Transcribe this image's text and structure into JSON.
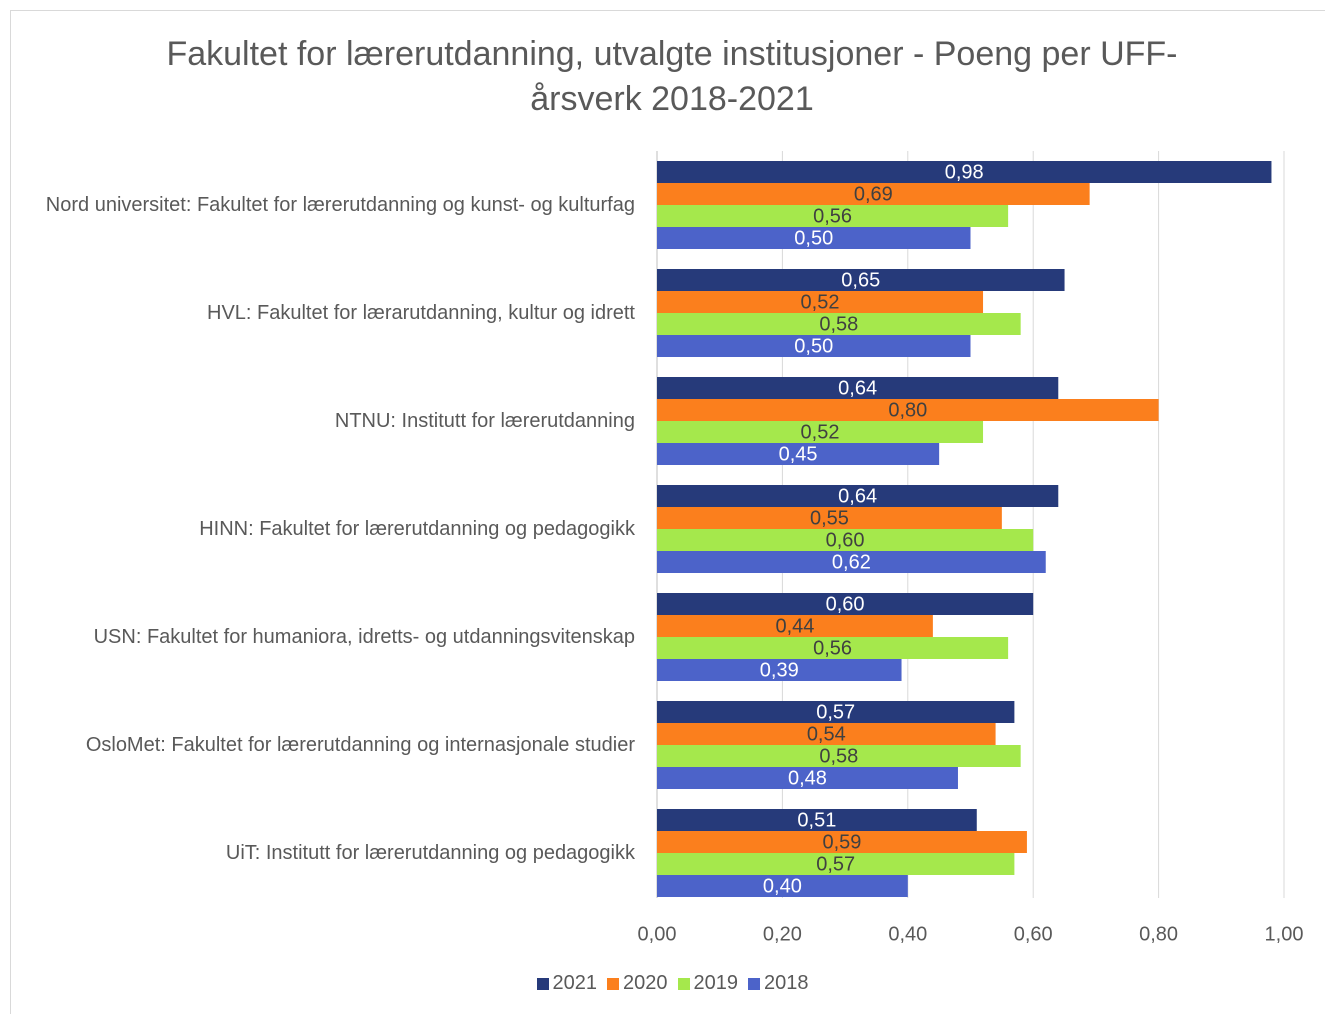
{
  "chart_data": {
    "type": "barh",
    "title": "Fakultet for lærerutdanning, utvalgte institusjoner - Poeng per UFF-årsverk 2018-2021",
    "categories": [
      "Nord universitet: Fakultet for lærerutdanning og kunst- og kulturfag",
      "HVL: Fakultet for lærarutdanning, kultur og idrett",
      "NTNU: Institutt for lærerutdanning",
      "HINN: Fakultet for lærerutdanning og pedagogikk",
      "USN: Fakultet for humaniora, idretts- og utdanningsvitenskap",
      "OsloMet: Fakultet for lærerutdanning og internasjonale studier",
      "UiT: Institutt for lærerutdanning og pedagogikk"
    ],
    "series": [
      {
        "name": "2021",
        "color": "#263a7a",
        "values": [
          0.98,
          0.65,
          0.64,
          0.64,
          0.6,
          0.57,
          0.51
        ],
        "value_labels": [
          "0,98",
          "0,65",
          "0,64",
          "0,64",
          "0,60",
          "0,57",
          "0,51"
        ]
      },
      {
        "name": "2020",
        "color": "#fb7f1d",
        "values": [
          0.69,
          0.52,
          0.8,
          0.55,
          0.44,
          0.54,
          0.59
        ],
        "value_labels": [
          "0,69",
          "0,52",
          "0,80",
          "0,55",
          "0,44",
          "0,54",
          "0,59"
        ]
      },
      {
        "name": "2019",
        "color": "#a5e84c",
        "values": [
          0.56,
          0.58,
          0.52,
          0.6,
          0.56,
          0.58,
          0.57
        ],
        "value_labels": [
          "0,56",
          "0,58",
          "0,52",
          "0,60",
          "0,56",
          "0,58",
          "0,57"
        ]
      },
      {
        "name": "2018",
        "color": "#4c63c9",
        "values": [
          0.5,
          0.5,
          0.45,
          0.62,
          0.39,
          0.48,
          0.4
        ],
        "value_labels": [
          "0,50",
          "0,50",
          "0,45",
          "0,62",
          "0,39",
          "0,48",
          "0,40"
        ]
      }
    ],
    "xlim": [
      0,
      1
    ],
    "xticks": [
      {
        "value": 0,
        "label": "0,00"
      },
      {
        "value": 0.2,
        "label": "0,20"
      },
      {
        "value": 0.4,
        "label": "0,40"
      },
      {
        "value": 0.6,
        "label": "0,60"
      },
      {
        "value": 0.8,
        "label": "0,80"
      },
      {
        "value": 1,
        "label": "1,00"
      }
    ],
    "grid": true,
    "legend": "bottom"
  }
}
